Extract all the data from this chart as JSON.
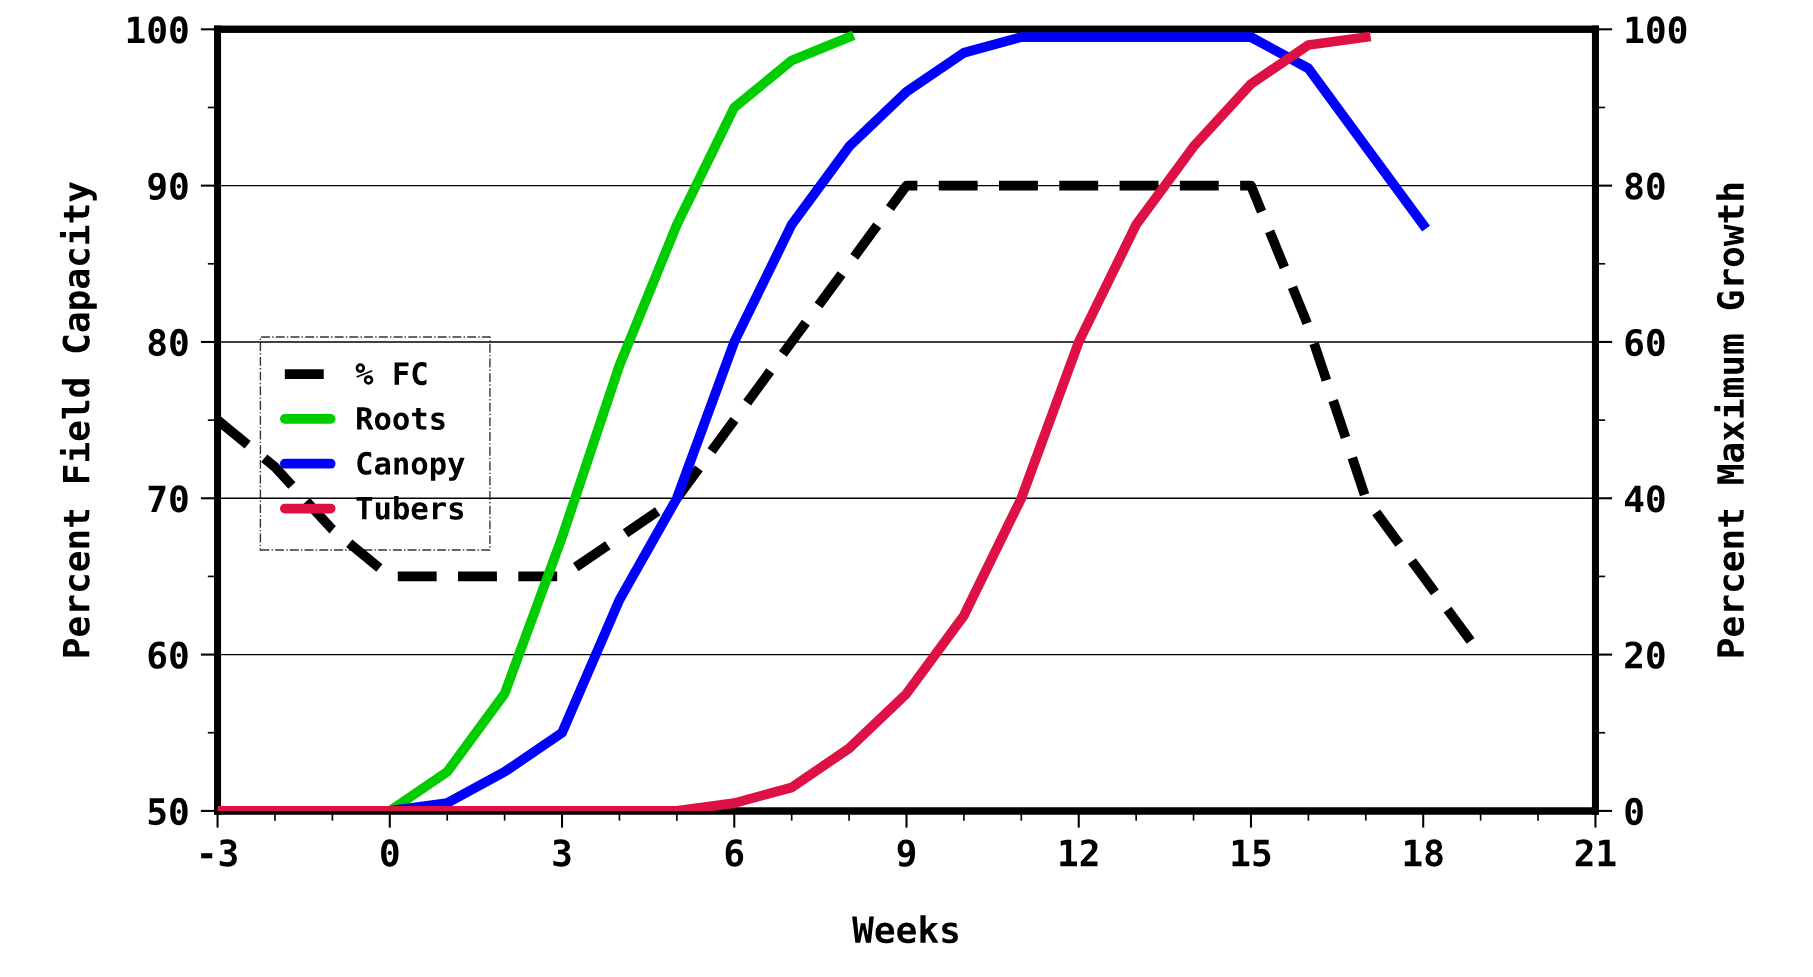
{
  "chart_data": {
    "type": "line",
    "xlabel": "Weeks",
    "ylabel": "Percent Field Capacity",
    "y2label": "Percent Maximum Growth",
    "x": [
      -3,
      -2,
      -1,
      0,
      1,
      2,
      3,
      4,
      5,
      6,
      7,
      8,
      9,
      10,
      11,
      12,
      13,
      14,
      15,
      16,
      17,
      18,
      19
    ],
    "series": [
      {
        "name": "% FC",
        "color": "#000000",
        "line_style": "dashed",
        "values": [
          75,
          72,
          68,
          65,
          65,
          65,
          65,
          67.5,
          70,
          75,
          80,
          85,
          90,
          90,
          90,
          90,
          90,
          90,
          90,
          81,
          70,
          65,
          60
        ]
      },
      {
        "name": "Roots",
        "color": "#00cc00",
        "axis": "y2",
        "line_style": "solid",
        "x": [
          0,
          1,
          2,
          3,
          4,
          5,
          6,
          7,
          8
        ],
        "values": [
          0,
          5,
          15,
          35,
          57,
          75,
          90,
          96,
          99
        ]
      },
      {
        "name": "Canopy",
        "color": "#0000ff",
        "axis": "y2",
        "line_style": "solid",
        "x": [
          0,
          1,
          2,
          3,
          4,
          5,
          6,
          7,
          8,
          9,
          10,
          11,
          12,
          13,
          14,
          15,
          16,
          17,
          18
        ],
        "values": [
          0,
          1,
          5,
          10,
          27,
          40,
          60,
          75,
          85,
          92,
          97,
          99,
          99,
          99,
          99,
          99,
          95,
          85,
          75
        ]
      },
      {
        "name": "Tubers",
        "color": "#dd1144",
        "axis": "y2",
        "line_style": "solid",
        "x": [
          -3,
          -2,
          -1,
          0,
          1,
          2,
          3,
          4,
          5,
          6,
          7,
          8,
          9,
          10,
          11,
          12,
          13,
          14,
          15,
          16,
          17
        ],
        "values": [
          0,
          0,
          0,
          0,
          0,
          0,
          0,
          0,
          0,
          1,
          3,
          8,
          15,
          25,
          40,
          60,
          75,
          85,
          93,
          98,
          99
        ]
      }
    ],
    "xlim": [
      -3,
      21
    ],
    "xticks": [
      -3,
      0,
      3,
      6,
      9,
      12,
      15,
      18,
      21
    ],
    "ylim": [
      50,
      100
    ],
    "yticks": [
      50,
      60,
      70,
      80,
      90,
      100
    ],
    "y2lim": [
      0,
      100
    ],
    "y2ticks": [
      0,
      20,
      40,
      60,
      80,
      100
    ],
    "grid": "y",
    "legend": "left"
  }
}
